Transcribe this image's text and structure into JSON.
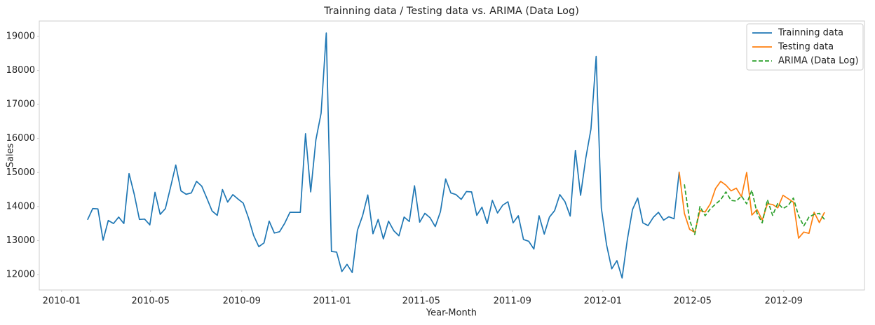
{
  "chart_data": {
    "type": "line",
    "title": "Trainning data / Testing data vs. ARIMA (Data Log)",
    "x_label": "Year-Month",
    "y_label": "Sales",
    "xlim": [
      -9.3,
      149.7
    ],
    "xticks": [
      {
        "value": -5,
        "label": "2010-01"
      },
      {
        "value": 12.14,
        "label": "2010-05"
      },
      {
        "value": 29.71,
        "label": "2010-09"
      },
      {
        "value": 47.14,
        "label": "2011-01"
      },
      {
        "value": 64.29,
        "label": "2011-05"
      },
      {
        "value": 81.86,
        "label": "2011-09"
      },
      {
        "value": 99.29,
        "label": "2012-01"
      },
      {
        "value": 116.57,
        "label": "2012-05"
      },
      {
        "value": 134.14,
        "label": "2012-09"
      }
    ],
    "ylim": [
      11547,
      19453
    ],
    "yticks": [
      12000,
      13000,
      14000,
      15000,
      16000,
      17000,
      18000,
      19000
    ],
    "grid": false,
    "legend": "upper right",
    "series": [
      {
        "name": "Trainning data",
        "color": "#1f77b4",
        "linestyle": "solid",
        "x": [
          0,
          1,
          2,
          3,
          4,
          5,
          6,
          7,
          8,
          9,
          10,
          11,
          12,
          13,
          14,
          15,
          16,
          17,
          18,
          19,
          20,
          21,
          22,
          23,
          24,
          25,
          26,
          27,
          28,
          29,
          30,
          31,
          32,
          33,
          34,
          35,
          36,
          37,
          38,
          39,
          40,
          41,
          42,
          43,
          44,
          45,
          46,
          47,
          48,
          49,
          50,
          51,
          52,
          53,
          54,
          55,
          56,
          57,
          58,
          59,
          60,
          61,
          62,
          63,
          64,
          65,
          66,
          67,
          68,
          69,
          70,
          71,
          72,
          73,
          74,
          75,
          76,
          77,
          78,
          79,
          80,
          81,
          82,
          83,
          84,
          85,
          86,
          87,
          88,
          89,
          90,
          91,
          92,
          93,
          94,
          95,
          96,
          97,
          98,
          99,
          100,
          101,
          102,
          103,
          104,
          105,
          106,
          107,
          108,
          109,
          110,
          111,
          112,
          113,
          114
        ],
        "values": [
          13610,
          13940,
          13930,
          13010,
          13590,
          13500,
          13690,
          13500,
          14970,
          14360,
          13620,
          13630,
          13460,
          14420,
          13770,
          13940,
          14570,
          15220,
          14460,
          14360,
          14400,
          14740,
          14600,
          14240,
          13870,
          13740,
          14500,
          14130,
          14350,
          14220,
          14100,
          13670,
          13150,
          12820,
          12930,
          13570,
          13220,
          13260,
          13510,
          13830,
          13830,
          13830,
          16140,
          14430,
          15960,
          16740,
          19100,
          12680,
          12660,
          12090,
          12300,
          12060,
          13300,
          13730,
          14340,
          13200,
          13620,
          13050,
          13570,
          13290,
          13140,
          13690,
          13560,
          14610,
          13540,
          13800,
          13670,
          13410,
          13850,
          14810,
          14400,
          14350,
          14210,
          14440,
          14430,
          13740,
          13980,
          13500,
          14180,
          13810,
          14040,
          14140,
          13520,
          13730,
          13030,
          12980,
          12750,
          13730,
          13190,
          13690,
          13880,
          14350,
          14140,
          13720,
          15650,
          14330,
          15420,
          16280,
          18410,
          13950,
          12880,
          12170,
          12410,
          11900,
          13020,
          13910,
          14250,
          13520,
          13440,
          13680,
          13830,
          13600,
          13700,
          13640,
          15020
        ]
      },
      {
        "name": "Testing data",
        "color": "#ff7f0e",
        "linestyle": "solid",
        "x": [
          114,
          115,
          116,
          117,
          118,
          119,
          120,
          121,
          122,
          123,
          124,
          125,
          126,
          127,
          128,
          129,
          130,
          131,
          132,
          133,
          134,
          135,
          136,
          137,
          138,
          139,
          140,
          141,
          142
        ],
        "values": [
          15020,
          13800,
          13330,
          13240,
          13880,
          13840,
          14080,
          14530,
          14740,
          14630,
          14460,
          14540,
          14290,
          15000,
          13750,
          13910,
          13600,
          14080,
          14060,
          13960,
          14330,
          14230,
          14130,
          13070,
          13250,
          13210,
          13830,
          13530,
          13830
        ]
      },
      {
        "name": "ARIMA (Data Log)",
        "color": "#2ca02c",
        "linestyle": "dashed",
        "x": [
          115,
          116,
          117,
          118,
          119,
          120,
          121,
          122,
          123,
          124,
          125,
          126,
          127,
          128,
          129,
          130,
          131,
          132,
          133,
          134,
          135,
          136,
          137,
          138,
          139,
          140,
          141,
          142
        ],
        "values": [
          14650,
          13600,
          13180,
          14000,
          13730,
          13930,
          14070,
          14200,
          14430,
          14180,
          14160,
          14310,
          14080,
          14480,
          13800,
          13520,
          14200,
          13740,
          14100,
          13940,
          14030,
          14250,
          13730,
          13430,
          13690,
          13770,
          13800,
          13620
        ]
      }
    ]
  }
}
